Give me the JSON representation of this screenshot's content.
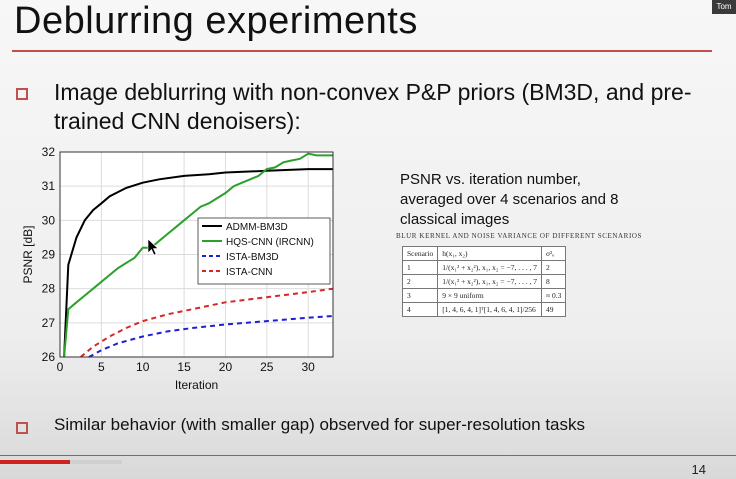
{
  "slide": {
    "title": "Deblurring experiments",
    "user_badge": "Tom",
    "page_number": "14",
    "progress_fraction": 0.095
  },
  "bullets": [
    {
      "text": "Image deblurring with non-convex P&P priors (BM3D, and pre-trained CNN denoisers):"
    },
    {
      "text": "Similar behavior (with smaller gap) observed for super-resolution tasks"
    }
  ],
  "caption": "PSNR vs. iteration number, averaged over 4 scenarios and 8 classical images",
  "table": {
    "title": "Blur Kernel and Noise Variance of Different Scenarios",
    "headers": [
      "Scenario",
      "h(x₁, x₂)",
      "σ²ₑ"
    ],
    "rows": [
      [
        "1",
        "1/(x₁² + x₂²), x₁, x₂ = −7, . . . , 7",
        "2"
      ],
      [
        "2",
        "1/(x₁² + x₂²), x₁, x₂ = −7, . . . , 7",
        "8"
      ],
      [
        "3",
        "9 × 9 uniform",
        "≈ 0.3"
      ],
      [
        "4",
        "[1, 4, 6, 4, 1]ᵀ[1, 4, 6, 4, 1]/256",
        "49"
      ]
    ]
  },
  "colors": {
    "accent": "#c0504d",
    "admm": "#000000",
    "hqs": "#2ca02c",
    "ista_bm3d": "#1f1fd6",
    "ista_cnn": "#d62728"
  },
  "chart_data": {
    "type": "line",
    "xlabel": "Iteration",
    "ylabel": "PSNR [dB]",
    "xlim": [
      0,
      33
    ],
    "ylim": [
      26,
      32
    ],
    "xticks": [
      0,
      5,
      10,
      15,
      20,
      25,
      30
    ],
    "yticks": [
      26,
      27,
      28,
      29,
      30,
      31,
      32
    ],
    "grid": true,
    "legend": "center-right",
    "series": [
      {
        "name": "ADMM-BM3D",
        "style": "solid",
        "color": "#000000",
        "x": [
          0.5,
          1,
          2,
          3,
          4,
          5,
          6,
          8,
          10,
          12,
          15,
          18,
          20,
          25,
          30,
          33
        ],
        "y": [
          26.0,
          28.7,
          29.5,
          30.0,
          30.3,
          30.5,
          30.7,
          30.95,
          31.1,
          31.2,
          31.3,
          31.35,
          31.4,
          31.45,
          31.5,
          31.5
        ]
      },
      {
        "name": "HQS-CNN (IRCNN)",
        "style": "solid",
        "color": "#2ca02c",
        "x": [
          0.5,
          1,
          2,
          3,
          4,
          5,
          6,
          7,
          8,
          9,
          10,
          11,
          12,
          13,
          14,
          15,
          16,
          17,
          18,
          19,
          20,
          21,
          22,
          23,
          24,
          25,
          26,
          27,
          28,
          29,
          30,
          31,
          32,
          33
        ],
        "y": [
          26.0,
          27.4,
          27.6,
          27.8,
          28.0,
          28.2,
          28.4,
          28.6,
          28.75,
          28.9,
          29.2,
          29.2,
          29.4,
          29.6,
          29.8,
          30.0,
          30.2,
          30.4,
          30.5,
          30.65,
          30.8,
          31.0,
          31.1,
          31.2,
          31.3,
          31.5,
          31.55,
          31.7,
          31.75,
          31.8,
          31.95,
          31.9,
          31.9,
          31.9
        ]
      },
      {
        "name": "ISTA-BM3D",
        "style": "dashed",
        "color": "#1f1fd6",
        "x": [
          3.5,
          5,
          7,
          10,
          13,
          16,
          20,
          25,
          30,
          33
        ],
        "y": [
          26.0,
          26.2,
          26.4,
          26.6,
          26.75,
          26.85,
          26.95,
          27.05,
          27.15,
          27.2
        ]
      },
      {
        "name": "ISTA-CNN",
        "style": "dashed",
        "color": "#d62728",
        "x": [
          2.5,
          4,
          6,
          8,
          10,
          13,
          16,
          20,
          25,
          30,
          33
        ],
        "y": [
          26.0,
          26.3,
          26.6,
          26.85,
          27.05,
          27.25,
          27.4,
          27.6,
          27.75,
          27.9,
          28.0
        ]
      }
    ]
  }
}
